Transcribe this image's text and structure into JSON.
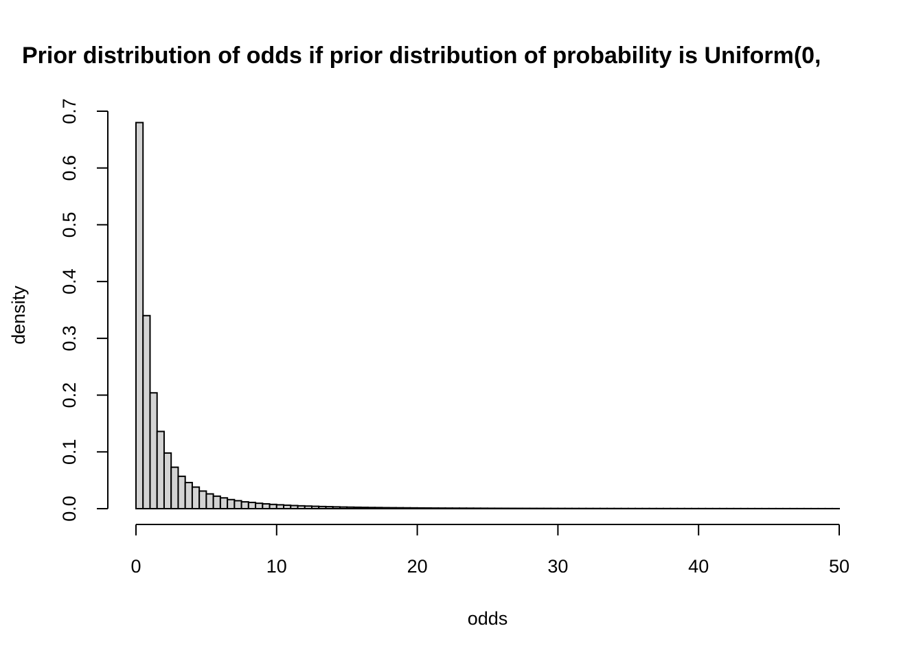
{
  "chart_data": {
    "type": "bar",
    "title": "Prior distribution of odds if prior distribution of probability is Uniform(0,",
    "xlabel": "odds",
    "ylabel": "density",
    "xlim": [
      0,
      50
    ],
    "ylim": [
      0,
      0.7
    ],
    "x_ticks": [
      "0",
      "10",
      "20",
      "30",
      "40",
      "50"
    ],
    "y_ticks": [
      "0.0",
      "0.1",
      "0.2",
      "0.3",
      "0.4",
      "0.5",
      "0.6",
      "0.7"
    ],
    "bin_width": 0.5,
    "bin_start": 0,
    "values": [
      0.68,
      0.34,
      0.204,
      0.136,
      0.098,
      0.073,
      0.057,
      0.046,
      0.038,
      0.031,
      0.026,
      0.022,
      0.019,
      0.016,
      0.014,
      0.012,
      0.011,
      0.0095,
      0.0085,
      0.0075,
      0.0068,
      0.0061,
      0.0055,
      0.005,
      0.0046,
      0.0042,
      0.0038,
      0.0035,
      0.0032,
      0.0029,
      0.0027,
      0.0025,
      0.0023,
      0.0021,
      0.002,
      0.0018,
      0.0017,
      0.0016,
      0.0015,
      0.0014,
      0.0013,
      0.0012,
      0.0011,
      0.00105,
      0.001,
      0.00095,
      0.0009,
      0.00085,
      0.0008,
      0.00075,
      0.0007,
      0.00067,
      0.00064,
      0.00061,
      0.00058,
      0.00055,
      0.00052,
      0.0005,
      0.00048,
      0.00046,
      0.00044,
      0.00042,
      0.0004,
      0.00038,
      0.00037,
      0.00035,
      0.00034,
      0.00033,
      0.00032,
      0.0003,
      0.00029,
      0.00028,
      0.00027,
      0.00026,
      0.00025,
      0.00024,
      0.00024,
      0.00023,
      0.00022,
      0.00021,
      0.00021,
      0.0002,
      0.00019,
      0.00019,
      0.00018,
      0.00018,
      0.00017,
      0.00016,
      0.00016,
      0.00015,
      0.00015,
      0.00015,
      0.00014,
      0.00014,
      0.00013,
      0.00013,
      0.00012,
      0.00012,
      0.00012,
      0.00011
    ],
    "grid": false,
    "legend": "none",
    "bar_fill": "#d3d3d3",
    "bar_stroke": "#000000"
  }
}
